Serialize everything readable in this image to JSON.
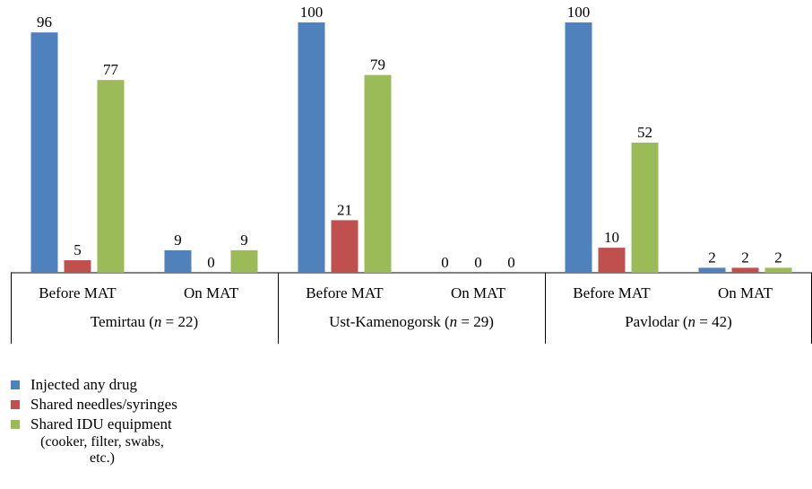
{
  "chart_data": {
    "type": "bar",
    "title": "",
    "ylabel": "",
    "ylim": [
      0,
      100
    ],
    "groups": [
      {
        "label": "Temirtau (n = 22)",
        "place": "Temirtau",
        "n": "22",
        "categories": [
          {
            "label": "Before MAT",
            "values": [
              96,
              5,
              77
            ]
          },
          {
            "label": "On MAT",
            "values": [
              9,
              0,
              9
            ]
          }
        ]
      },
      {
        "label": "Ust-Kamenogorsk (n = 29)",
        "place": "Ust-Kamenogorsk",
        "n": "29",
        "categories": [
          {
            "label": "Before MAT",
            "values": [
              100,
              21,
              79
            ]
          },
          {
            "label": "On MAT",
            "values": [
              0,
              0,
              0
            ]
          }
        ]
      },
      {
        "label": "Pavlodar (n = 42)",
        "place": "Pavlodar",
        "n": "42",
        "categories": [
          {
            "label": "Before MAT",
            "values": [
              100,
              10,
              52
            ]
          },
          {
            "label": "On MAT",
            "values": [
              2,
              2,
              2
            ]
          }
        ]
      }
    ],
    "series": [
      {
        "name": "Injected any drug",
        "color": "#4f81bd"
      },
      {
        "name": "Shared needles/syringes",
        "color": "#c0504d"
      },
      {
        "name": "Shared IDU equipment (cooker, filter, swabs, etc.)",
        "color": "#9bbb59"
      }
    ],
    "legend_position": "bottom-left"
  },
  "legend": {
    "items": [
      {
        "label": "Injected any drug",
        "color": "#4f81bd"
      },
      {
        "label": "Shared needles/syringes",
        "color": "#c0504d"
      },
      {
        "label": "Shared IDU equipment",
        "sub1": "(cooker, filter, swabs,",
        "sub2": "etc.)",
        "color": "#9bbb59"
      }
    ]
  }
}
